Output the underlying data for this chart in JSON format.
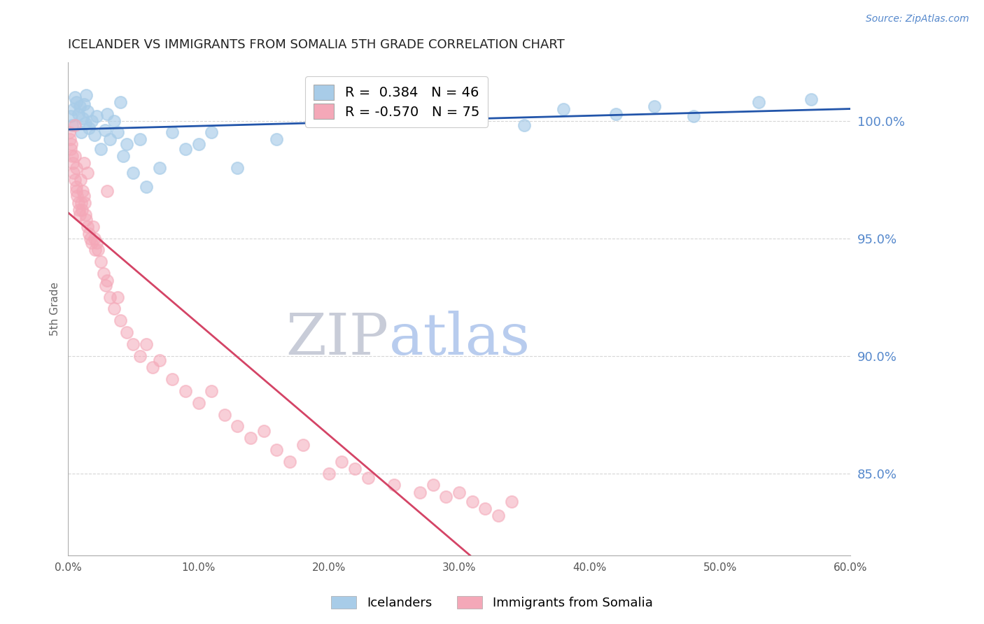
{
  "title": "ICELANDER VS IMMIGRANTS FROM SOMALIA 5TH GRADE CORRELATION CHART",
  "source": "Source: ZipAtlas.com",
  "ylabel": "5th Grade",
  "xlim": [
    0.0,
    60.0
  ],
  "ylim": [
    81.5,
    102.5
  ],
  "blue_R": 0.384,
  "blue_N": 46,
  "pink_R": -0.57,
  "pink_N": 75,
  "blue_color": "#a8cce8",
  "pink_color": "#f4a8b8",
  "blue_line_color": "#2255aa",
  "pink_line_color": "#d44466",
  "grid_color": "#cccccc",
  "title_color": "#222222",
  "axis_label_color": "#666666",
  "right_axis_color": "#5588cc",
  "watermark_zip_color": "#c8ccd8",
  "watermark_atlas_color": "#b8ccee",
  "legend_blue_label": "Icelanders",
  "legend_pink_label": "Immigrants from Somalia",
  "background_color": "#ffffff",
  "blue_x": [
    0.2,
    0.3,
    0.4,
    0.5,
    0.6,
    0.8,
    0.9,
    1.0,
    1.1,
    1.2,
    1.3,
    1.4,
    1.5,
    1.6,
    1.8,
    2.0,
    2.2,
    2.5,
    2.8,
    3.0,
    3.2,
    3.5,
    3.8,
    4.0,
    4.2,
    4.5,
    5.0,
    5.5,
    6.0,
    7.0,
    8.0,
    9.0,
    10.0,
    11.0,
    13.0,
    16.0,
    19.0,
    23.0,
    28.0,
    35.0,
    38.0,
    42.0,
    45.0,
    48.0,
    53.0,
    57.0
  ],
  "blue_y": [
    100.2,
    99.8,
    100.5,
    101.0,
    100.8,
    100.3,
    100.6,
    99.5,
    100.1,
    100.7,
    99.9,
    101.1,
    100.4,
    99.7,
    100.0,
    99.4,
    100.2,
    98.8,
    99.6,
    100.3,
    99.2,
    100.0,
    99.5,
    100.8,
    98.5,
    99.0,
    97.8,
    99.2,
    97.2,
    98.0,
    99.5,
    98.8,
    99.0,
    99.5,
    98.0,
    99.2,
    100.5,
    100.8,
    100.2,
    99.8,
    100.5,
    100.3,
    100.6,
    100.2,
    100.8,
    100.9
  ],
  "pink_x": [
    0.1,
    0.15,
    0.2,
    0.25,
    0.3,
    0.35,
    0.4,
    0.5,
    0.5,
    0.6,
    0.65,
    0.7,
    0.8,
    0.85,
    0.9,
    0.95,
    1.0,
    1.05,
    1.1,
    1.2,
    1.25,
    1.3,
    1.4,
    1.5,
    1.6,
    1.7,
    1.8,
    1.9,
    2.0,
    2.1,
    2.2,
    2.3,
    2.5,
    2.7,
    2.9,
    3.0,
    3.2,
    3.5,
    3.8,
    4.0,
    4.5,
    5.0,
    5.5,
    6.0,
    6.5,
    7.0,
    8.0,
    9.0,
    10.0,
    11.0,
    12.0,
    13.0,
    14.0,
    15.0,
    16.0,
    17.0,
    18.0,
    20.0,
    21.0,
    22.0,
    23.0,
    25.0,
    27.0,
    28.0,
    29.0,
    30.0,
    31.0,
    32.0,
    33.0,
    34.0,
    0.5,
    0.6,
    1.5,
    1.2,
    3.0
  ],
  "pink_y": [
    99.5,
    99.2,
    98.8,
    99.0,
    98.5,
    98.2,
    97.8,
    97.5,
    98.5,
    97.2,
    97.0,
    96.8,
    96.5,
    96.2,
    96.0,
    97.5,
    96.5,
    96.2,
    97.0,
    96.8,
    96.5,
    96.0,
    95.8,
    95.5,
    95.2,
    95.0,
    94.8,
    95.5,
    95.0,
    94.5,
    94.8,
    94.5,
    94.0,
    93.5,
    93.0,
    93.2,
    92.5,
    92.0,
    92.5,
    91.5,
    91.0,
    90.5,
    90.0,
    90.5,
    89.5,
    89.8,
    89.0,
    88.5,
    88.0,
    88.5,
    87.5,
    87.0,
    86.5,
    86.8,
    86.0,
    85.5,
    86.2,
    85.0,
    85.5,
    85.2,
    84.8,
    84.5,
    84.2,
    84.5,
    84.0,
    84.2,
    83.8,
    83.5,
    83.2,
    83.8,
    99.8,
    98.0,
    97.8,
    98.2,
    97.0
  ]
}
